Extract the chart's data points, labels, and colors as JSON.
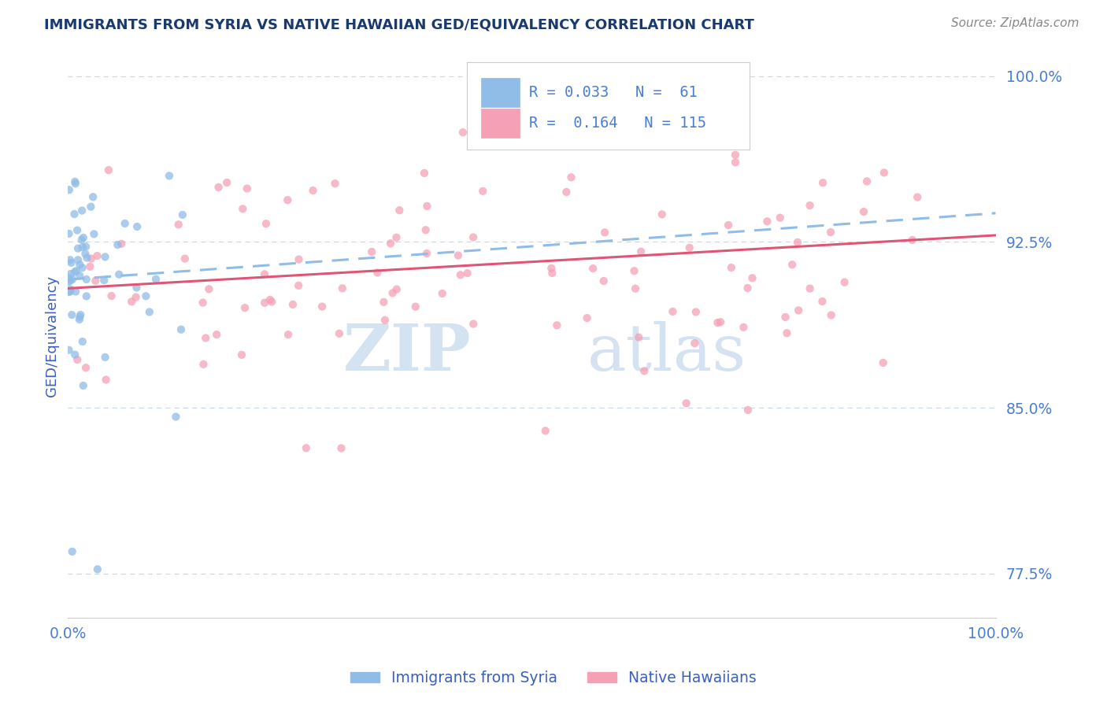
{
  "title": "IMMIGRANTS FROM SYRIA VS NATIVE HAWAIIAN GED/EQUIVALENCY CORRELATION CHART",
  "source_text": "Source: ZipAtlas.com",
  "ylabel": "GED/Equivalency",
  "watermark_zip": "ZIP",
  "watermark_atlas": "atlas",
  "xlim": [
    0.0,
    1.0
  ],
  "ylim": [
    0.755,
    1.01
  ],
  "yticks": [
    0.775,
    0.85,
    0.925,
    1.0
  ],
  "ytick_labels": [
    "77.5%",
    "85.0%",
    "92.5%",
    "100.0%"
  ],
  "legend_text1": "R = 0.033   N =  61",
  "legend_text2": "R =  0.164   N = 115",
  "series1_color": "#90bce8",
  "series2_color": "#f5a0b5",
  "line1_color": "#90bce8",
  "line2_color": "#e05575",
  "title_color": "#1a3a6e",
  "axis_label_color": "#3a5fbf",
  "tick_color": "#4a7fd4",
  "source_color": "#888888",
  "background_color": "#ffffff",
  "grid_color": "#c8d8f0",
  "legend_text_color": "#4a7fd4",
  "line1_start_y": 0.908,
  "line1_end_y": 0.938,
  "line2_start_y": 0.904,
  "line2_end_y": 0.928
}
